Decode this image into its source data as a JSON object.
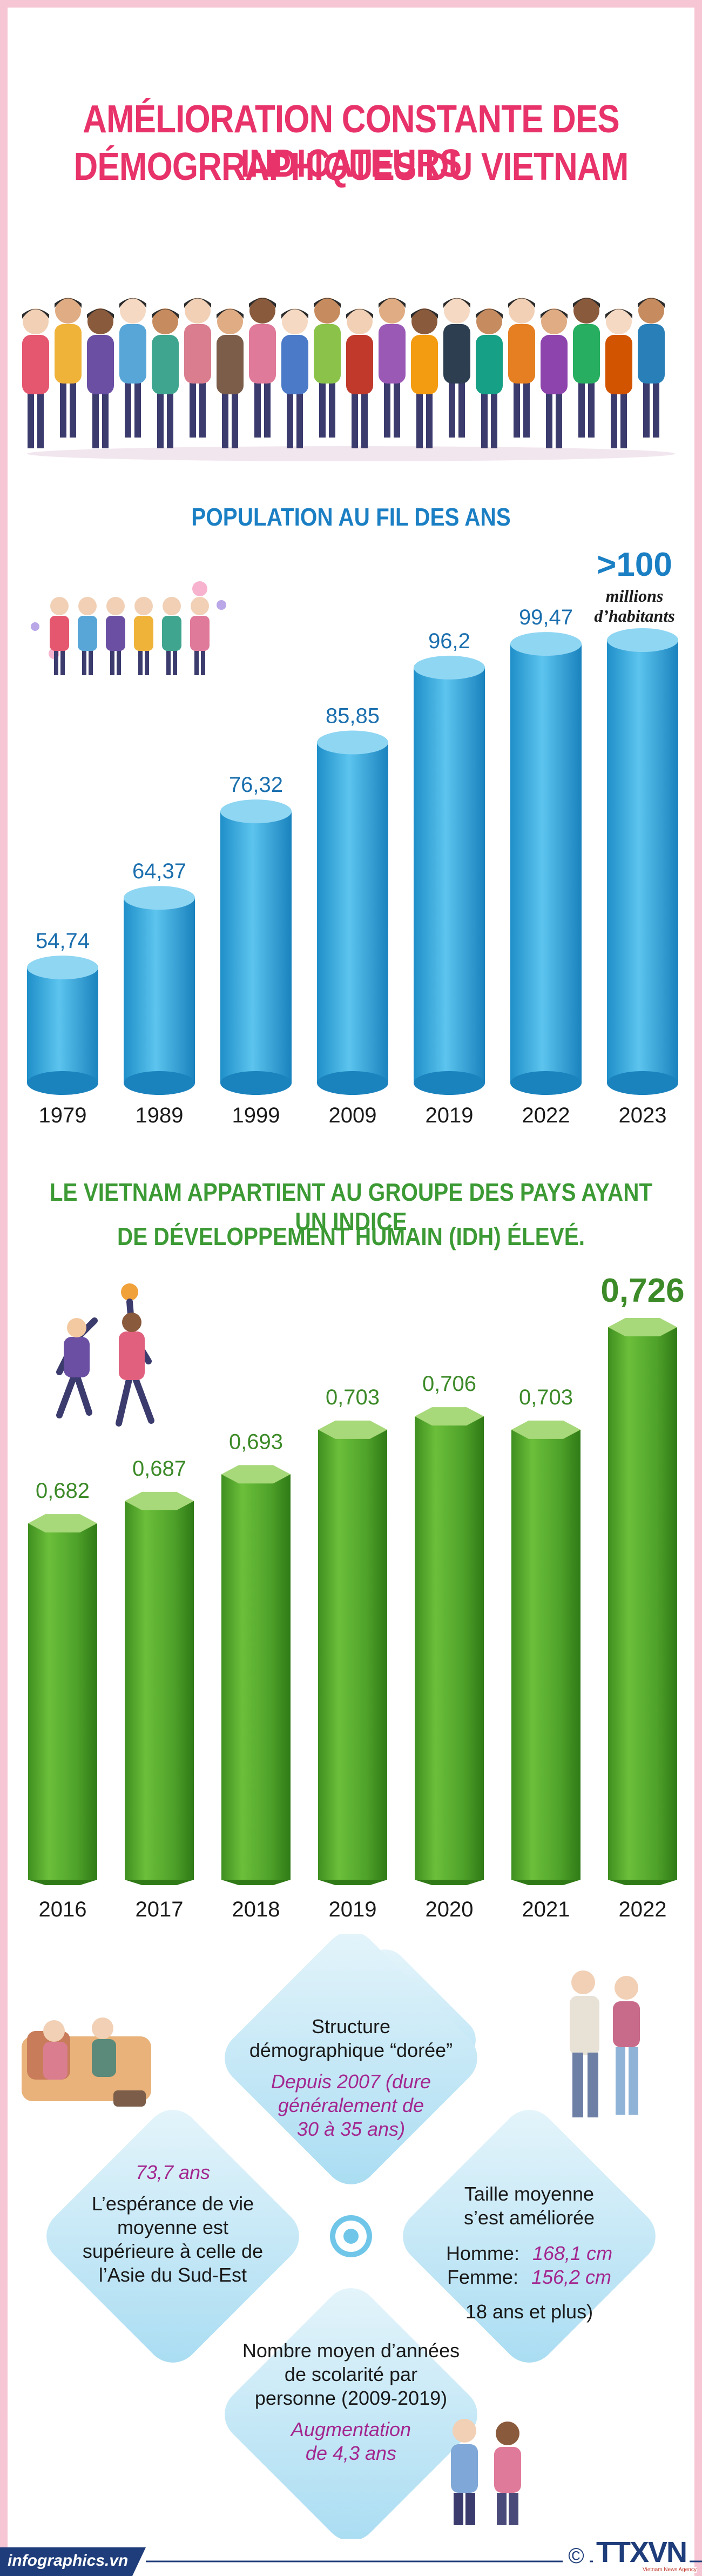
{
  "title": {
    "line1": "AMÉLIORATION CONSTANTE DES INDICATEURS",
    "line2": "DÉMOGRRAPHIQUES DU VIETNAM"
  },
  "population_section": {
    "title": "POPULATION AU FIL DES ANS",
    "highlight": ">100",
    "highlight_sub1": "millions",
    "highlight_sub2": "d’habitants"
  },
  "idh_section": {
    "title_line1": "LE VIETNAM APPARTIENT AU GROUPE DES PAYS AYANT UN INDICE",
    "title_line2": "DE DÉVELOPPEMENT HUMAIN (IDH) ÉLEVÉ."
  },
  "chart_data": [
    {
      "type": "bar",
      "title": "POPULATION AU FIL DES ANS",
      "categories": [
        "1979",
        "1989",
        "1999",
        "2009",
        "2019",
        "2022",
        "2023"
      ],
      "values": [
        54.74,
        64.37,
        76.32,
        85.85,
        96.2,
        99.47,
        100
      ],
      "labels": [
        "54,74",
        "64,37",
        "76,32",
        "85,85",
        "96,2",
        "99,47",
        ""
      ],
      "ylim": [
        40,
        100
      ],
      "color": "#2fa8dc"
    },
    {
      "type": "bar",
      "title": "LE VIETNAM APPARTIENT AU GROUPE DES PAYS AYANT UN INDICE DE DÉVELOPPEMENT HUMAIN (IDH) ÉLEVÉ.",
      "categories": [
        "2016",
        "2017",
        "2018",
        "2019",
        "2020",
        "2021",
        "2022"
      ],
      "values": [
        0.682,
        0.687,
        0.693,
        0.703,
        0.706,
        0.703,
        0.726
      ],
      "labels": [
        "0,682",
        "0,687",
        "0,693",
        "0,703",
        "0,706",
        "0,703",
        "0,726"
      ],
      "ylim": [
        0.6,
        0.726
      ],
      "color": "#5eac2e"
    }
  ],
  "info": {
    "structure_title1": "Structure",
    "structure_title2": "démographique “dorée”",
    "structure_value1": "Depuis 2007 (dure",
    "structure_value2": "généralement de",
    "structure_value3": "30 à 35 ans)",
    "life_value": "73,7 ans",
    "life_text1": "L’espérance de vie",
    "life_text2": "moyenne est",
    "life_text3": "supérieure à celle de",
    "life_text4": "l’Asie du Sud-Est",
    "height_title1": "Taille moyenne",
    "height_title2": "s’est améliorée",
    "height_male_label": "Homme:",
    "height_male_value": "168,1 cm",
    "height_female_label": "Femme:",
    "height_female_value": "156,2 cm",
    "height_note": "18 ans et plus)",
    "school_title1": "Nombre moyen d’années",
    "school_title2": "de scolarité par",
    "school_title3": "personne (2009-2019)",
    "school_value1": "Augmentation",
    "school_value2": "de 4,3 ans"
  },
  "footer": {
    "site": "infographics.vn",
    "copyright": "©",
    "brand": "TTXVN",
    "brand_sub": "Vietnam News Agency"
  }
}
